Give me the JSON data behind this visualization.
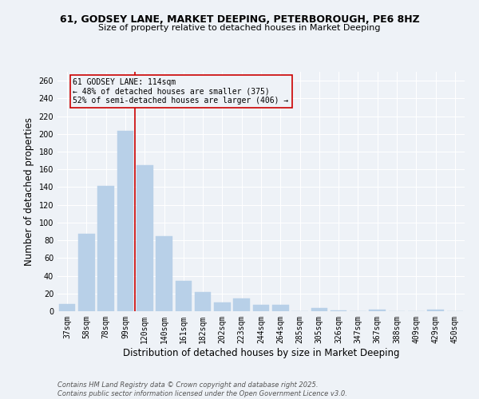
{
  "title_line1": "61, GODSEY LANE, MARKET DEEPING, PETERBOROUGH, PE6 8HZ",
  "title_line2": "Size of property relative to detached houses in Market Deeping",
  "xlabel": "Distribution of detached houses by size in Market Deeping",
  "ylabel": "Number of detached properties",
  "bar_color": "#b8d0e8",
  "bar_edgecolor": "#b8d0e8",
  "categories": [
    "37sqm",
    "58sqm",
    "78sqm",
    "99sqm",
    "120sqm",
    "140sqm",
    "161sqm",
    "182sqm",
    "202sqm",
    "223sqm",
    "244sqm",
    "264sqm",
    "285sqm",
    "305sqm",
    "326sqm",
    "347sqm",
    "367sqm",
    "388sqm",
    "409sqm",
    "429sqm",
    "450sqm"
  ],
  "values": [
    8,
    87,
    141,
    203,
    165,
    85,
    34,
    22,
    10,
    14,
    7,
    7,
    0,
    4,
    1,
    0,
    2,
    0,
    0,
    2,
    0
  ],
  "ylim": [
    0,
    270
  ],
  "yticks": [
    0,
    20,
    40,
    60,
    80,
    100,
    120,
    140,
    160,
    180,
    200,
    220,
    240,
    260
  ],
  "vline_x": 3.5,
  "vline_color": "#cc0000",
  "annotation_line1": "61 GODSEY LANE: 114sqm",
  "annotation_line2": "← 48% of detached houses are smaller (375)",
  "annotation_line3": "52% of semi-detached houses are larger (406) →",
  "annotation_box_color": "#cc0000",
  "bg_color": "#eef2f7",
  "grid_color": "#ffffff",
  "footer_text": "Contains HM Land Registry data © Crown copyright and database right 2025.\nContains public sector information licensed under the Open Government Licence v3.0.",
  "title_fontsize": 9,
  "subtitle_fontsize": 8,
  "axis_label_fontsize": 8.5,
  "tick_fontsize": 7,
  "annotation_fontsize": 7,
  "footer_fontsize": 6
}
